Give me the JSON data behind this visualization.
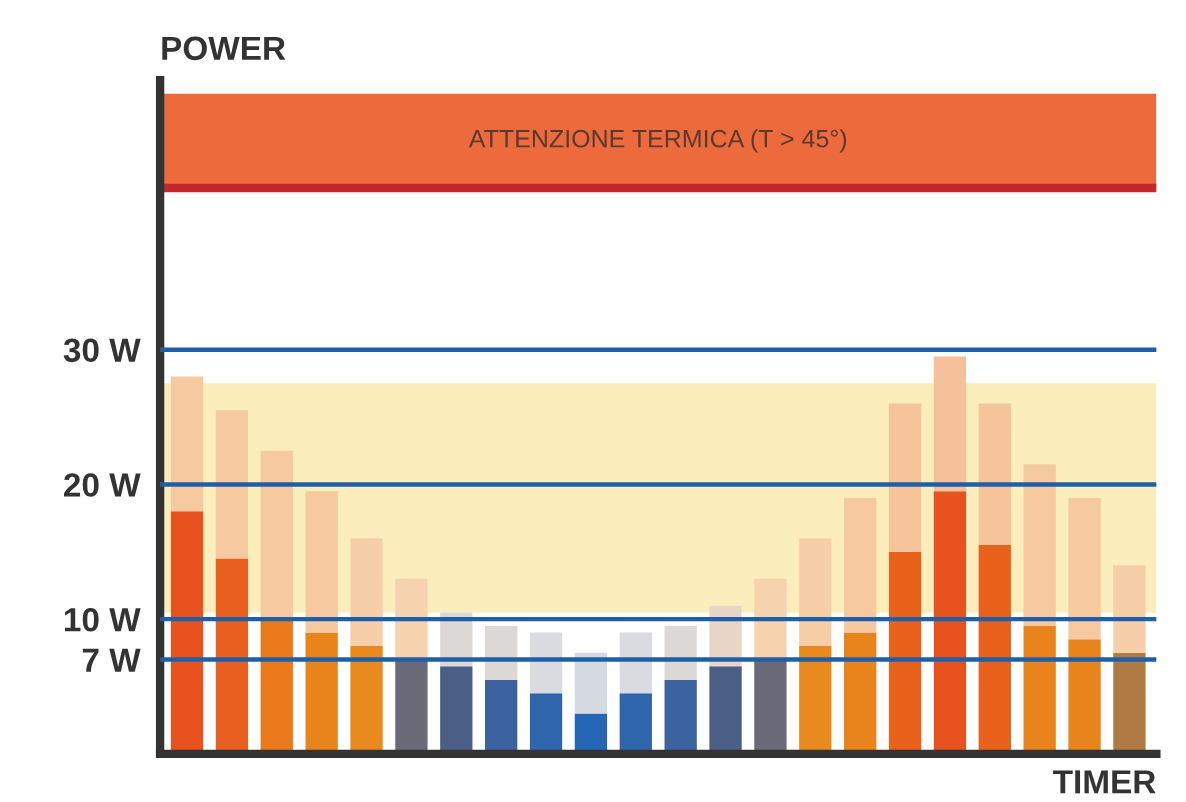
{
  "chart_data": {
    "type": "bar",
    "xlabel": "TIMER",
    "ylabel": "POWER",
    "categories": [
      null,
      null,
      null,
      null,
      null,
      null,
      null,
      null,
      null,
      null,
      null,
      null,
      null,
      null,
      null,
      null,
      null,
      null,
      null,
      null,
      null,
      null
    ],
    "stacked": true,
    "series": [
      {
        "colors": [
          "#e8521f",
          "#e85f1f",
          "#ea7a1c",
          "#e9831c",
          "#e98a1f",
          "#6b6a78",
          "#4b5f86",
          "#3c62a0",
          "#2f65ad",
          "#2566b5",
          "#2f65ad",
          "#3c62a0",
          "#4b5f86",
          "#6b6a78",
          "#e98a1f",
          "#e9831c",
          "#e8621c",
          "#e8521f",
          "#e8621c",
          "#e9831c",
          "#e9831c",
          "#b07a45"
        ],
        "values": [
          18,
          14.5,
          10,
          9,
          8,
          7,
          6.5,
          5.5,
          4.5,
          3,
          4.5,
          5.5,
          6.5,
          7,
          8,
          9,
          15,
          19.5,
          15.5,
          9.5,
          8.5,
          7.5
        ]
      },
      {
        "colors": [
          "#f6c9a0",
          "#f6c9a0",
          "#f6c9a0",
          "#f6c9a0",
          "#f6cfa8",
          "#f6d2ae",
          "#dcd8d6",
          "#dcd8d6",
          "#d9dbe0",
          "#d4d9e2",
          "#d9dbe0",
          "#dcd8d6",
          "#e9d6c6",
          "#f6d2ae",
          "#f6cfa8",
          "#f6c9a0",
          "#f6c49a",
          "#f6c09a",
          "#f6c49a",
          "#f6c9a0",
          "#f6c9a0",
          "#f6cfa8"
        ],
        "values": [
          10,
          11,
          12.5,
          10.5,
          8,
          6,
          4,
          4,
          4.5,
          4.5,
          4.5,
          4,
          4.5,
          6,
          8,
          10,
          11,
          10,
          10.5,
          12,
          10.5,
          6.5
        ]
      }
    ],
    "ylim": [
      0,
      50
    ],
    "yticks": [
      {
        "value": 7,
        "label": "7 W"
      },
      {
        "value": 10,
        "label": "10 W"
      },
      {
        "value": 20,
        "label": "20 W"
      },
      {
        "value": 30,
        "label": "30 W"
      }
    ],
    "grid": "y",
    "bands": [
      {
        "axis": "y",
        "from": 10.5,
        "to": 27.5,
        "label": null,
        "color": "#fbeebc"
      },
      {
        "axis": "y",
        "from": 42,
        "to": 49,
        "label": "ATTENZIONE TERMICA (T > 45°)",
        "color": "#ec6a3c"
      }
    ],
    "ref_lines": [
      {
        "axis": "y",
        "value": 42,
        "label": null,
        "color": "#c0282d"
      }
    ]
  }
}
